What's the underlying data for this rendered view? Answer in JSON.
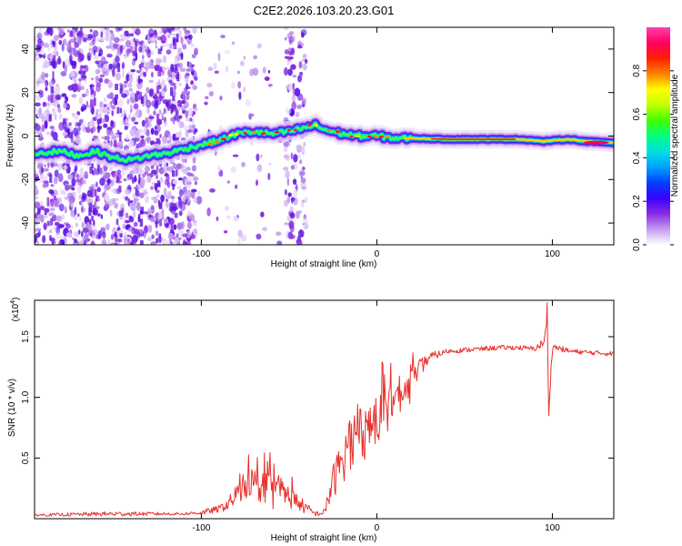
{
  "figure_title": "C2E2.2026.103.20.23.G01",
  "chart_data": [
    {
      "type": "heatmap",
      "title": "C2E2.2026.103.20.23.G01",
      "xlabel": "Height of straight line (km)",
      "ylabel": "Frequency (Hz)",
      "xlim": [
        -195,
        135
      ],
      "ylim": [
        -50,
        50
      ],
      "xticks": [
        -100,
        0,
        100
      ],
      "yticks": [
        -40,
        -20,
        0,
        20,
        40
      ],
      "xtick_labels": [
        "-100",
        "0",
        "100"
      ],
      "ytick_labels": [
        "-40",
        "-20",
        "0",
        "20",
        "40"
      ],
      "colorbar": {
        "label": "Normalized spectral amplitude",
        "range": [
          0,
          1
        ],
        "ticks": [
          0.0,
          0.2,
          0.4,
          0.6,
          0.8
        ],
        "tick_labels": [
          "0.0",
          "0.2",
          "0.4",
          "0.6",
          "0.8"
        ],
        "colors": [
          "#ffffff",
          "#c49bf0",
          "#8a2be2",
          "#3a00ff",
          "#0040ff",
          "#00a0ff",
          "#00e0e0",
          "#00ff80",
          "#40ff00",
          "#c0ff00",
          "#ffff00",
          "#ff8000",
          "#ff2000",
          "#ff0060",
          "#ff40b0"
        ]
      },
      "ridge": {
        "name": "frequency track",
        "x": [
          -195,
          -180,
          -170,
          -160,
          -150,
          -140,
          -130,
          -120,
          -110,
          -100,
          -90,
          -80,
          -70,
          -60,
          -50,
          -40,
          -35,
          -30,
          -20,
          -10,
          0,
          10,
          20,
          40,
          60,
          80,
          90,
          95,
          100,
          110,
          120,
          135
        ],
        "y": [
          -8,
          -7,
          -9,
          -7,
          -10,
          -11,
          -9,
          -8,
          -6,
          -4,
          -2,
          1,
          2,
          1,
          2,
          4,
          5,
          3,
          1,
          0,
          0,
          -1,
          -1,
          -1.5,
          -1.5,
          -1.5,
          -2,
          -2.5,
          -2,
          -1.5,
          -2.5,
          -3
        ]
      }
    },
    {
      "type": "line",
      "xlabel": "Height of straight line (km)",
      "ylabel": "SNR (10 * v/v)",
      "y_scale_label": "(x10",
      "y_scale_exp": "4",
      "xlim": [
        -195,
        135
      ],
      "ylim": [
        0,
        1.8
      ],
      "xticks": [
        -100,
        0,
        100
      ],
      "yticks": [
        0.5,
        1.0,
        1.5
      ],
      "xtick_labels": [
        "-100",
        "0",
        "100"
      ],
      "ytick_labels": [
        "0.5",
        "1.0",
        "1.5"
      ],
      "series": [
        {
          "name": "SNR",
          "color": "#e8302c",
          "x": [
            -195,
            -150,
            -110,
            -100,
            -90,
            -85,
            -80,
            -75,
            -70,
            -65,
            -60,
            -55,
            -50,
            -45,
            -40,
            -35,
            -30,
            -28,
            -25,
            -20,
            -15,
            -10,
            -5,
            0,
            5,
            10,
            15,
            20,
            25,
            30,
            40,
            50,
            60,
            70,
            80,
            90,
            95,
            97,
            98,
            100,
            110,
            120,
            135
          ],
          "y": [
            0.03,
            0.04,
            0.04,
            0.05,
            0.08,
            0.12,
            0.18,
            0.28,
            0.3,
            0.25,
            0.28,
            0.24,
            0.18,
            0.14,
            0.08,
            0.04,
            0.05,
            0.15,
            0.3,
            0.48,
            0.62,
            0.72,
            0.78,
            0.8,
            0.9,
            0.98,
            1.05,
            1.15,
            1.25,
            1.33,
            1.38,
            1.39,
            1.4,
            1.41,
            1.41,
            1.4,
            1.45,
            1.6,
            0.9,
            1.42,
            1.38,
            1.37,
            1.36
          ],
          "noise_amp": [
            0.01,
            0.02,
            0.01,
            0.02,
            0.03,
            0.05,
            0.09,
            0.12,
            0.14,
            0.13,
            0.13,
            0.12,
            0.1,
            0.07,
            0.05,
            0.02,
            0.03,
            0.08,
            0.14,
            0.2,
            0.24,
            0.25,
            0.24,
            0.22,
            0.2,
            0.18,
            0.14,
            0.1,
            0.07,
            0.04,
            0.02,
            0.02,
            0.02,
            0.02,
            0.02,
            0.02,
            0.04,
            0.05,
            0.05,
            0.03,
            0.02,
            0.02,
            0.02
          ]
        }
      ]
    }
  ]
}
